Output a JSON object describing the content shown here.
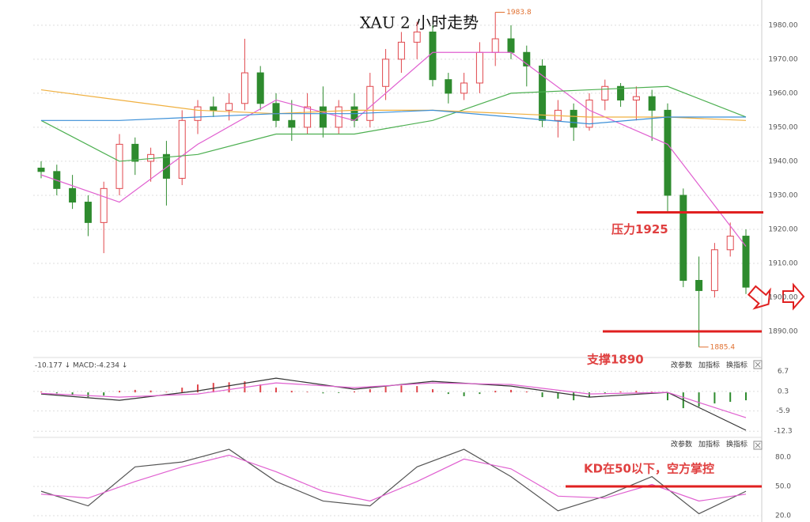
{
  "chart_data": [
    {
      "type": "candlestick",
      "title": "XAU 2 小时走势",
      "up_color": "#e0474c",
      "down_color": "#2e8b2e",
      "candles": [
        [
          1938,
          1940,
          1935,
          1937
        ],
        [
          1937,
          1939,
          1930,
          1932
        ],
        [
          1932,
          1936,
          1926,
          1928
        ],
        [
          1928,
          1930,
          1918,
          1922
        ],
        [
          1922,
          1934,
          1913,
          1932
        ],
        [
          1932,
          1948,
          1930,
          1945
        ],
        [
          1945,
          1947,
          1936,
          1940
        ],
        [
          1940,
          1944,
          1934,
          1942
        ],
        [
          1942,
          1946,
          1927,
          1935
        ],
        [
          1935,
          1955,
          1933,
          1952
        ],
        [
          1952,
          1958,
          1948,
          1956
        ],
        [
          1956,
          1959,
          1953,
          1955
        ],
        [
          1955,
          1960,
          1952,
          1957
        ],
        [
          1957,
          1976,
          1955,
          1966
        ],
        [
          1966,
          1968,
          1955,
          1957
        ],
        [
          1957,
          1960,
          1950,
          1952
        ],
        [
          1952,
          1958,
          1946,
          1950
        ],
        [
          1950,
          1960,
          1948,
          1956
        ],
        [
          1956,
          1962,
          1947,
          1950
        ],
        [
          1950,
          1958,
          1948,
          1956
        ],
        [
          1956,
          1960,
          1950,
          1952
        ],
        [
          1952,
          1966,
          1950,
          1962
        ],
        [
          1962,
          1973,
          1958,
          1970
        ],
        [
          1970,
          1978,
          1966,
          1975
        ],
        [
          1975,
          1981,
          1970,
          1978
        ],
        [
          1978,
          1980,
          1962,
          1964
        ],
        [
          1964,
          1966,
          1957,
          1960
        ],
        [
          1960,
          1966,
          1958,
          1963
        ],
        [
          1963,
          1975,
          1960,
          1972
        ],
        [
          1972,
          1983.8,
          1968,
          1976
        ],
        [
          1976,
          1980,
          1970,
          1972
        ],
        [
          1972,
          1974,
          1962,
          1968
        ],
        [
          1968,
          1970,
          1950,
          1952
        ],
        [
          1952,
          1958,
          1947,
          1955
        ],
        [
          1955,
          1957,
          1946,
          1950
        ],
        [
          1950,
          1960,
          1949,
          1958
        ],
        [
          1958,
          1964,
          1955,
          1962
        ],
        [
          1962,
          1963,
          1956,
          1958
        ],
        [
          1958,
          1962,
          1952,
          1959
        ],
        [
          1959,
          1961,
          1946,
          1955
        ],
        [
          1955,
          1957,
          1925,
          1930
        ],
        [
          1930,
          1932,
          1903,
          1905
        ],
        [
          1905,
          1912,
          1885.4,
          1902
        ],
        [
          1902,
          1916,
          1900,
          1914
        ],
        [
          1914,
          1922,
          1912,
          1918
        ],
        [
          1918,
          1920,
          1901,
          1903
        ]
      ],
      "lines": [
        {
          "color": "#e060d0",
          "x": [
            0,
            5,
            10,
            15,
            20,
            25,
            30,
            35,
            40,
            45
          ],
          "values": [
            1936,
            1928,
            1945,
            1958,
            1952,
            1972,
            1972,
            1955,
            1945,
            1915
          ]
        },
        {
          "color": "#4caf50",
          "x": [
            0,
            5,
            10,
            15,
            20,
            25,
            30,
            35,
            40,
            45
          ],
          "values": [
            1952,
            1940,
            1942,
            1948,
            1948,
            1952,
            1960,
            1961,
            1962,
            1953
          ]
        },
        {
          "color": "#f0b040",
          "x": [
            0,
            5,
            10,
            15,
            20,
            25,
            30,
            35,
            40,
            45
          ],
          "values": [
            1961,
            1958,
            1955,
            1954,
            1955,
            1955,
            1954,
            1953,
            1953,
            1952
          ]
        },
        {
          "color": "#3a8fd8",
          "x": [
            0,
            5,
            10,
            15,
            20,
            25,
            30,
            35,
            40,
            45
          ],
          "values": [
            1952,
            1952,
            1953,
            1954,
            1954,
            1955,
            1953,
            1951,
            1953,
            1953
          ]
        }
      ],
      "ylim": [
        1882.8,
        1987.4
      ],
      "yticks": [
        {
          "value": 1890,
          "label": "1890.00"
        },
        {
          "value": 1900,
          "label": "1900.00"
        },
        {
          "value": 1910,
          "label": "1910.00"
        },
        {
          "value": 1920,
          "label": "1920.00"
        },
        {
          "value": 1930,
          "label": "1930.00"
        },
        {
          "value": 1940,
          "label": "1940.00"
        },
        {
          "value": 1950,
          "label": "1950.00"
        },
        {
          "value": 1960,
          "label": "1960.00"
        },
        {
          "value": 1970,
          "label": "1970.00"
        },
        {
          "value": 1980,
          "label": "1980.00"
        }
      ],
      "high_marker": 1983.8,
      "low_marker": 1885.4,
      "resistance": {
        "label": "压力1925",
        "value": 1925
      },
      "support": {
        "label": "支撑1890",
        "value": 1890
      }
    },
    {
      "type": "bar",
      "header": "-10.177 ↓  MACD:-4.234 ↓",
      "buttons": [
        "改参数",
        "加指标",
        "换指标"
      ],
      "up_color": "#e0474c",
      "down_color": "#2e8b2e",
      "values": [
        0.2,
        -0.3,
        -0.8,
        -1.5,
        -1.0,
        0.5,
        0.8,
        0.6,
        0.2,
        1.5,
        2.5,
        3.0,
        3.2,
        3.5,
        2.5,
        1.5,
        0.5,
        0.2,
        -0.3,
        -0.2,
        0.3,
        1.0,
        1.8,
        2.2,
        2.0,
        1.0,
        -0.5,
        -1.2,
        -0.5,
        0.5,
        0.8,
        0.3,
        -1.5,
        -2.0,
        -2.5,
        -1.5,
        -0.5,
        0.3,
        0.5,
        0.2,
        -2.5,
        -5.0,
        -4.5,
        -3.5,
        -3.0,
        -2.5
      ],
      "lines": [
        {
          "color": "#333333",
          "x": [
            0,
            5,
            10,
            15,
            20,
            25,
            30,
            35,
            40,
            45
          ],
          "values": [
            -0.5,
            -2.5,
            0.5,
            4.5,
            1.0,
            3.5,
            2.0,
            -1.5,
            0.0,
            -12.0
          ]
        },
        {
          "color": "#e060d0",
          "x": [
            0,
            5,
            10,
            15,
            20,
            25,
            30,
            35,
            40,
            45
          ],
          "values": [
            -0.3,
            -1.5,
            -0.5,
            3.0,
            1.5,
            3.0,
            2.5,
            -0.5,
            0.0,
            -8.0
          ]
        }
      ],
      "ylim": [
        -14.0,
        10.3
      ],
      "yticks": [
        6.7,
        0.3,
        -5.9,
        -12.3
      ]
    },
    {
      "type": "line",
      "buttons": [
        "改参数",
        "加指标",
        "换指标"
      ],
      "lines": [
        {
          "color": "#555555",
          "x": [
            0,
            3,
            6,
            9,
            12,
            15,
            18,
            21,
            24,
            27,
            30,
            33,
            36,
            39,
            42,
            45
          ],
          "values": [
            45,
            30,
            70,
            75,
            88,
            55,
            35,
            30,
            70,
            88,
            60,
            25,
            40,
            60,
            22,
            45
          ]
        },
        {
          "color": "#e060d0",
          "x": [
            0,
            3,
            6,
            9,
            12,
            15,
            18,
            21,
            24,
            27,
            30,
            33,
            36,
            39,
            42,
            45
          ],
          "values": [
            42,
            38,
            55,
            70,
            82,
            65,
            45,
            35,
            55,
            78,
            68,
            40,
            38,
            52,
            35,
            42
          ]
        }
      ],
      "ylim": [
        13.5,
        98.6
      ],
      "yticks": [
        {
          "value": 80,
          "label": "80.0"
        },
        {
          "value": 50,
          "label": "50.0"
        },
        {
          "value": 20,
          "label": "20.0"
        }
      ],
      "annotation": {
        "label": "KD在50以下，空方掌控",
        "value": 50
      }
    }
  ]
}
